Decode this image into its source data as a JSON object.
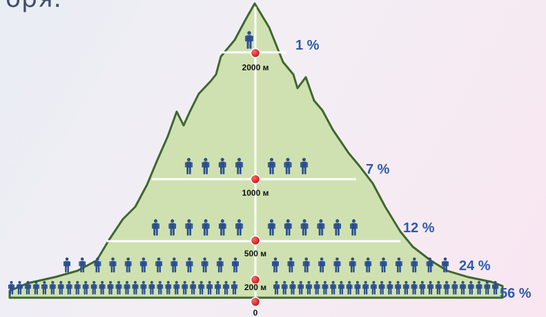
{
  "caption_fragment": "оря.",
  "axis_origin_label": "0",
  "colors": {
    "mountain_fill": "#cfe1b0",
    "mountain_stroke": "#3f6630",
    "person": "#2b4f8e",
    "marker": "#d0141a",
    "percent_text": "#2e5aa8"
  },
  "icon": "person-icon",
  "bands": [
    {
      "altitude_label": "2000 м",
      "percent": "1 %",
      "people": 1
    },
    {
      "altitude_label": "1000 м",
      "percent": "7 %",
      "people": 7
    },
    {
      "altitude_label": "500 м",
      "percent": "12 %",
      "people": 12
    },
    {
      "altitude_label": "200 м",
      "percent": "24 %",
      "people": 24
    },
    {
      "altitude_label": "",
      "percent": "56 %",
      "people": 56
    }
  ]
}
